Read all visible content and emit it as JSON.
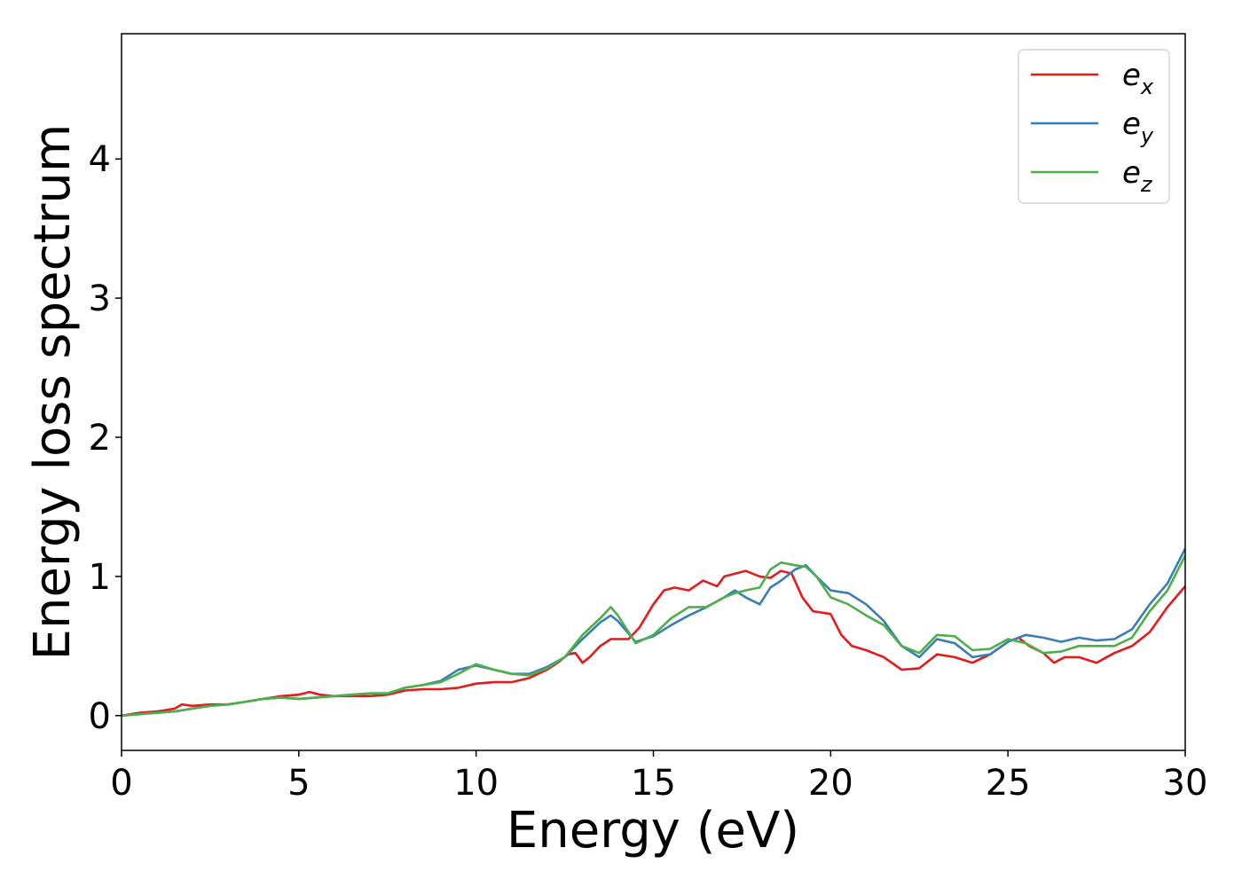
{
  "chart_data": {
    "type": "line",
    "title": "",
    "xlabel": "Energy (eV)",
    "ylabel": "Energy loss spectrum",
    "xlim": [
      0,
      30
    ],
    "ylim": [
      -0.25,
      4.9
    ],
    "xticks": [
      "0",
      "5",
      "10",
      "15",
      "20",
      "25",
      "30"
    ],
    "yticks": [
      "0",
      "1",
      "2",
      "3",
      "4"
    ],
    "grid": false,
    "legend_position": "top-right",
    "series": [
      {
        "name": "e_x",
        "legend_base": "e",
        "legend_sub": "x",
        "color": "#e41a1c",
        "x": [
          0,
          0.5,
          1,
          1.5,
          1.7,
          2,
          2.5,
          3,
          3.5,
          4,
          4.5,
          5,
          5.3,
          5.6,
          6,
          6.5,
          7,
          7.5,
          8,
          8.5,
          9,
          9.5,
          10,
          10.5,
          11,
          11.5,
          12,
          12.3,
          12.6,
          12.8,
          13,
          13.2,
          13.5,
          13.8,
          14,
          14.3,
          14.6,
          15,
          15.3,
          15.6,
          16,
          16.4,
          16.8,
          17,
          17.3,
          17.6,
          18,
          18.3,
          18.6,
          18.9,
          19.2,
          19.5,
          20,
          20.3,
          20.6,
          21,
          21.5,
          22,
          22.5,
          23,
          23.5,
          24,
          24.5,
          25,
          25.3,
          25.6,
          26,
          26.3,
          26.6,
          27,
          27.5,
          28,
          28.5,
          29,
          29.5,
          30
        ],
        "y": [
          0,
          0.02,
          0.03,
          0.05,
          0.08,
          0.07,
          0.08,
          0.08,
          0.1,
          0.12,
          0.14,
          0.15,
          0.17,
          0.15,
          0.14,
          0.14,
          0.14,
          0.15,
          0.18,
          0.19,
          0.19,
          0.2,
          0.23,
          0.24,
          0.24,
          0.27,
          0.33,
          0.38,
          0.44,
          0.45,
          0.38,
          0.42,
          0.5,
          0.55,
          0.55,
          0.55,
          0.63,
          0.8,
          0.9,
          0.92,
          0.9,
          0.97,
          0.93,
          1.0,
          1.02,
          1.04,
          1.0,
          0.99,
          1.04,
          1.02,
          0.85,
          0.75,
          0.73,
          0.58,
          0.5,
          0.47,
          0.42,
          0.33,
          0.34,
          0.44,
          0.42,
          0.38,
          0.44,
          0.53,
          0.56,
          0.5,
          0.45,
          0.38,
          0.42,
          0.42,
          0.38,
          0.45,
          0.5,
          0.6,
          0.78,
          0.93
        ]
      },
      {
        "name": "e_y",
        "legend_base": "e",
        "legend_sub": "y",
        "color": "#377eb8",
        "x": [
          0,
          0.5,
          1,
          1.5,
          2,
          2.5,
          3,
          3.5,
          4,
          4.5,
          5,
          5.5,
          6,
          6.5,
          7,
          7.5,
          8,
          8.5,
          9,
          9.5,
          10,
          10.5,
          11,
          11.5,
          12,
          12.5,
          13,
          13.5,
          13.8,
          14,
          14.5,
          15,
          15.5,
          16,
          16.5,
          17,
          17.3,
          17.6,
          18,
          18.3,
          18.6,
          19,
          19.3,
          19.6,
          20,
          20.5,
          21,
          21.5,
          22,
          22.5,
          23,
          23.5,
          24,
          24.5,
          25,
          25.5,
          26,
          26.5,
          27,
          27.5,
          28,
          28.5,
          29,
          29.5,
          30
        ],
        "y": [
          0,
          0.01,
          0.02,
          0.03,
          0.05,
          0.07,
          0.08,
          0.1,
          0.12,
          0.13,
          0.12,
          0.13,
          0.14,
          0.15,
          0.16,
          0.16,
          0.2,
          0.22,
          0.25,
          0.33,
          0.36,
          0.33,
          0.3,
          0.3,
          0.35,
          0.42,
          0.55,
          0.67,
          0.72,
          0.68,
          0.53,
          0.57,
          0.65,
          0.72,
          0.78,
          0.85,
          0.9,
          0.85,
          0.8,
          0.92,
          0.97,
          1.05,
          1.08,
          1.0,
          0.9,
          0.88,
          0.8,
          0.68,
          0.5,
          0.42,
          0.55,
          0.52,
          0.42,
          0.44,
          0.53,
          0.58,
          0.56,
          0.53,
          0.56,
          0.54,
          0.55,
          0.62,
          0.8,
          0.95,
          1.2
        ]
      },
      {
        "name": "e_z",
        "legend_base": "e",
        "legend_sub": "z",
        "color": "#4daf4a",
        "x": [
          0,
          0.5,
          1,
          1.5,
          2,
          2.5,
          3,
          3.5,
          4,
          4.5,
          5,
          5.5,
          6,
          6.5,
          7,
          7.5,
          8,
          8.5,
          9,
          9.5,
          10,
          10.5,
          11,
          11.5,
          12,
          12.5,
          13,
          13.5,
          13.8,
          14,
          14.5,
          15,
          15.5,
          16,
          16.5,
          17,
          17.3,
          17.6,
          18,
          18.3,
          18.6,
          19,
          19.3,
          19.6,
          20,
          20.5,
          21,
          21.5,
          22,
          22.5,
          23,
          23.5,
          24,
          24.5,
          25,
          25.5,
          26,
          26.5,
          27,
          27.5,
          28,
          28.5,
          29,
          29.5,
          30
        ],
        "y": [
          0,
          0.01,
          0.02,
          0.03,
          0.05,
          0.07,
          0.08,
          0.1,
          0.12,
          0.13,
          0.12,
          0.13,
          0.14,
          0.15,
          0.16,
          0.16,
          0.2,
          0.22,
          0.24,
          0.3,
          0.37,
          0.33,
          0.3,
          0.29,
          0.34,
          0.42,
          0.58,
          0.7,
          0.78,
          0.72,
          0.52,
          0.58,
          0.7,
          0.78,
          0.78,
          0.85,
          0.88,
          0.9,
          0.92,
          1.05,
          1.1,
          1.08,
          1.07,
          1.0,
          0.85,
          0.8,
          0.72,
          0.65,
          0.5,
          0.45,
          0.58,
          0.57,
          0.47,
          0.48,
          0.55,
          0.52,
          0.45,
          0.46,
          0.5,
          0.5,
          0.5,
          0.56,
          0.75,
          0.9,
          1.15
        ]
      }
    ]
  }
}
